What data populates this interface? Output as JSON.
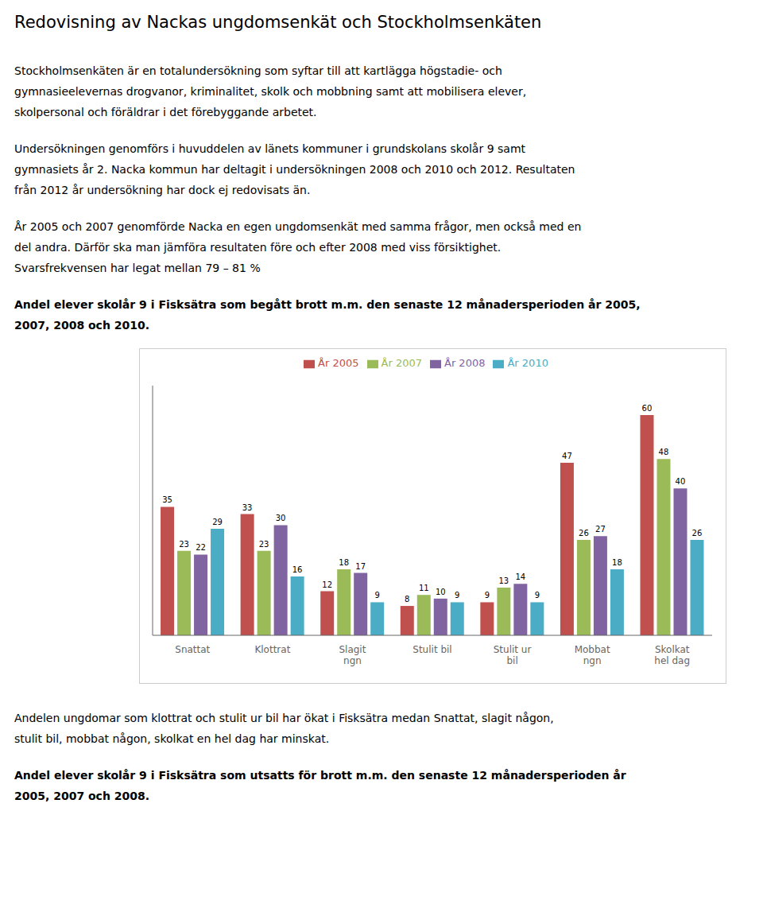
{
  "chart_data": {
    "type": "bar",
    "title": "Redovisning av Nackas ungdomsenkät och Stockholmsenkäten",
    "subtitle": [
      "Andel elever skolår 9 i Fisksätra som begått brott m.m. den senaste 12 månadersperioden år 2005,",
      "2007, 2008 och 2010."
    ],
    "annotations": [
      [
        "Stockholmsenkäten är en totalundersökning som syftar till att kartlägga högstadie- och",
        "gymnasieelevernas drogvanor, kriminalitet, skolk och mobbning samt att mobilisera elever,",
        "skolpersonal och föräldrar i det förebyggande arbetet."
      ],
      [
        "Undersökningen genomförs i huvuddelen av länets kommuner i grundskolans skolår 9 samt",
        "gymnasiets år 2. Nacka kommun har deltagit i undersökningen 2008 och 2010 och 2012. Resultaten",
        "från 2012 år undersökning har dock ej redovisats än."
      ],
      [
        "År 2005 och 2007 genomförde Nacka en egen ungdomsenkät med samma frågor, men också med en",
        "del andra. Därför ska man jämföra resultaten före och efter 2008 med viss försiktighet.",
        "Svarsfrekvensen har legat mellan 79 – 81 %"
      ],
      [
        "Andelen ungdomar som klottrat och stulit ur bil har ökat i Fisksätra medan Snattat, slagit någon,",
        "stulit bil, mobbat någon, skolkat en hel dag har minskat."
      ],
      [
        "Andel elever skolår 9 i Fisksätra som utsatts för brott m.m. den senaste 12 månadersperioden år",
        "2005, 2007 och 2008."
      ]
    ],
    "categories": [
      "Snattat",
      "Klottrat",
      "Slagit\nngn",
      "Stulit bil",
      "Stulit ur\nbil",
      "Mobbat\nngn",
      "Skolkat\nhel dag"
    ],
    "series": [
      {
        "name": "År 2005",
        "color": "#C0504D",
        "values": [
          35,
          33,
          12,
          8,
          9,
          47,
          60
        ]
      },
      {
        "name": "År 2007",
        "color": "#9BBB59",
        "values": [
          23,
          23,
          18,
          11,
          13,
          26,
          48
        ]
      },
      {
        "name": "År 2008",
        "color": "#8064A2",
        "values": [
          22,
          30,
          17,
          10,
          14,
          27,
          40
        ]
      },
      {
        "name": "År 2010",
        "color": "#4BACC6",
        "values": [
          29,
          16,
          9,
          9,
          9,
          18,
          26
        ]
      }
    ],
    "ylim": [
      0,
      68
    ],
    "tick_labels": "x",
    "grid": false,
    "legend": "top",
    "data_labels": true
  }
}
